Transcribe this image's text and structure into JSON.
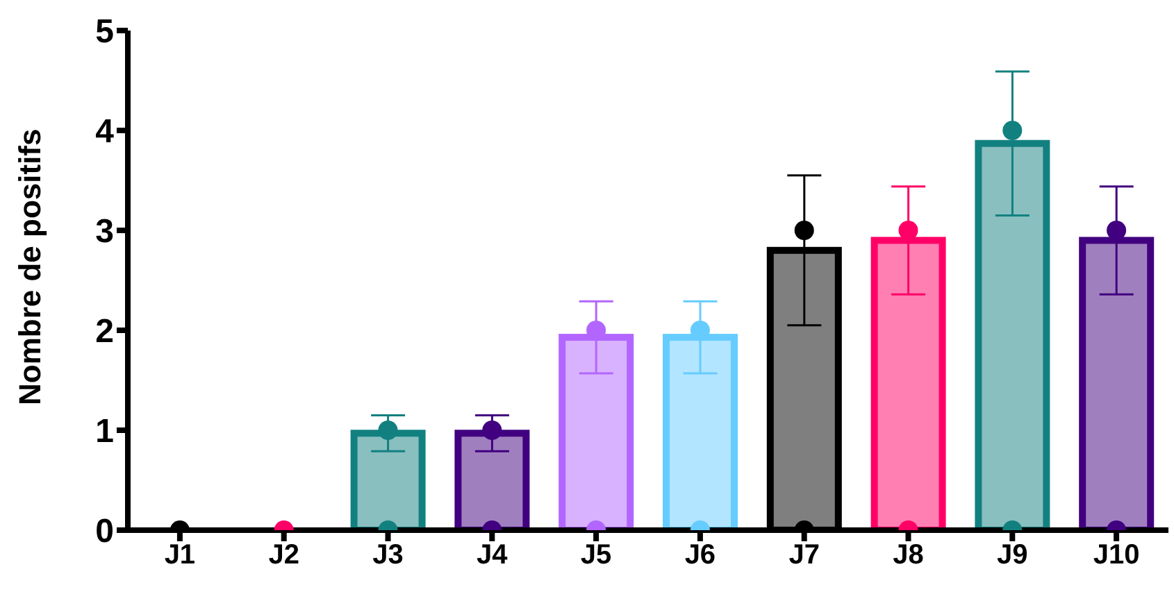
{
  "chart_data": {
    "type": "bar",
    "ylabel": "Nombre de positifs",
    "categories": [
      "J1",
      "J2",
      "J3",
      "J4",
      "J5",
      "J6",
      "J7",
      "J8",
      "J9",
      "J10"
    ],
    "series": [
      {
        "type": "bar",
        "values": [
          0,
          0,
          0.97,
          0.97,
          1.93,
          1.93,
          2.8,
          2.9,
          3.87,
          2.9
        ],
        "colors": [
          "#000000",
          "#ff0066",
          "#138080",
          "#41007f",
          "#b266ff",
          "#66ccff",
          "#000000",
          "#ff0066",
          "#138080",
          "#41007f"
        ],
        "errors": [
          null,
          null,
          [
            0.79,
            1.15
          ],
          [
            0.79,
            1.15
          ],
          [
            1.57,
            2.29
          ],
          [
            1.57,
            2.29
          ],
          [
            2.05,
            3.55
          ],
          [
            2.36,
            3.44
          ],
          [
            3.15,
            4.59
          ],
          [
            2.36,
            3.44
          ]
        ]
      },
      {
        "type": "scatter",
        "x": [
          "J1",
          "J2",
          "J3",
          "J4",
          "J5",
          "J6",
          "J7",
          "J8",
          "J9",
          "J10"
        ],
        "values": [
          0,
          0,
          1,
          1,
          2,
          2,
          3,
          3,
          4,
          3
        ],
        "colors": [
          "#000000",
          "#ff0066",
          "#138080",
          "#41007f",
          "#b266ff",
          "#66ccff",
          "#000000",
          "#ff0066",
          "#138080",
          "#41007f"
        ]
      },
      {
        "type": "scatter",
        "x": [
          "J3",
          "J4",
          "J5",
          "J6",
          "J7",
          "J8",
          "J9",
          "J10"
        ],
        "values": [
          0,
          0,
          0,
          0,
          0,
          0,
          0,
          0
        ],
        "colors": [
          "#138080",
          "#41007f",
          "#b266ff",
          "#66ccff",
          "#000000",
          "#ff0066",
          "#138080",
          "#41007f"
        ]
      }
    ],
    "ylim": [
      0,
      5
    ],
    "yticks": [
      0,
      1,
      2,
      3,
      4,
      5
    ],
    "grid": false,
    "marker": "circle"
  }
}
